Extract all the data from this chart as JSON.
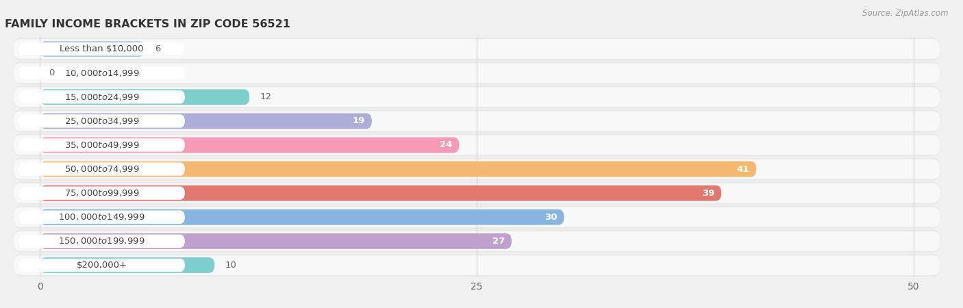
{
  "title": "FAMILY INCOME BRACKETS IN ZIP CODE 56521",
  "source": "Source: ZipAtlas.com",
  "categories": [
    "Less than $10,000",
    "$10,000 to $14,999",
    "$15,000 to $24,999",
    "$25,000 to $34,999",
    "$35,000 to $49,999",
    "$50,000 to $74,999",
    "$75,000 to $99,999",
    "$100,000 to $149,999",
    "$150,000 to $199,999",
    "$200,000+"
  ],
  "values": [
    6,
    0,
    12,
    19,
    24,
    41,
    39,
    30,
    27,
    10
  ],
  "bar_colors": [
    "#a8c8e8",
    "#c4afd4",
    "#7ececa",
    "#adadd8",
    "#f79ab8",
    "#f5b870",
    "#e07870",
    "#88b4e0",
    "#c0a0cc",
    "#7ecece"
  ],
  "xlim": [
    0,
    50
  ],
  "xticks": [
    0,
    25,
    50
  ],
  "bar_height": 0.65,
  "label_fontsize": 9.5,
  "title_fontsize": 11.5,
  "bg_color": "#f0f0f0",
  "row_bg_color": "#e8e8e8",
  "bar_bg_inner_color": "#f8f8f8",
  "label_box_color": "#ffffff",
  "grid_color": "#d0d0d0",
  "value_inside_threshold": 15
}
